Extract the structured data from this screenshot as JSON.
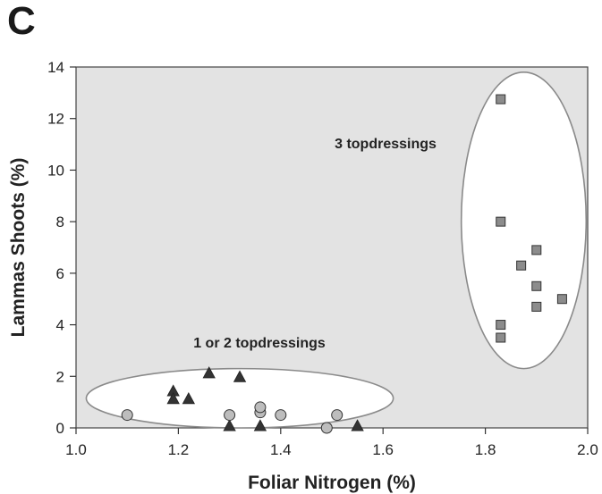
{
  "panel_label": "C",
  "chart_data": {
    "type": "scatter",
    "title": "",
    "xlabel": "Foliar Nitrogen (%)",
    "ylabel": "Lammas Shoots (%)",
    "xlim": [
      1.0,
      2.0
    ],
    "ylim": [
      0,
      14
    ],
    "xticks": [
      "1.0",
      "1.2",
      "1.4",
      "1.6",
      "1.8",
      "2.0"
    ],
    "yticks": [
      "0",
      "2",
      "4",
      "6",
      "8",
      "10",
      "12",
      "14"
    ],
    "grid": false,
    "plot_background": "#e3e3e3",
    "legend": "none",
    "series": [
      {
        "marker": "triangle",
        "color": "#333333",
        "points": [
          [
            1.19,
            1.4
          ],
          [
            1.19,
            1.1
          ],
          [
            1.22,
            1.1
          ],
          [
            1.26,
            2.1
          ],
          [
            1.32,
            1.95
          ],
          [
            1.3,
            0.05
          ],
          [
            1.36,
            0.05
          ],
          [
            1.55,
            0.05
          ]
        ]
      },
      {
        "marker": "circle",
        "color": "#bdbdbd",
        "points": [
          [
            1.1,
            0.5
          ],
          [
            1.3,
            0.5
          ],
          [
            1.36,
            0.6
          ],
          [
            1.36,
            0.8
          ],
          [
            1.4,
            0.5
          ],
          [
            1.49,
            0.0
          ],
          [
            1.51,
            0.5
          ]
        ]
      },
      {
        "marker": "square",
        "color": "#8c8c8c",
        "points": [
          [
            1.83,
            12.75
          ],
          [
            1.83,
            8.0
          ],
          [
            1.9,
            6.9
          ],
          [
            1.87,
            6.3
          ],
          [
            1.9,
            5.5
          ],
          [
            1.95,
            5.0
          ],
          [
            1.9,
            4.7
          ],
          [
            1.83,
            4.0
          ],
          [
            1.83,
            3.5
          ]
        ]
      }
    ],
    "groups": [
      {
        "label": "1 or 2 topdressings",
        "center": [
          1.32,
          1.15
        ],
        "radius": [
          0.3,
          1.15
        ]
      },
      {
        "label": "3 topdressings",
        "center": [
          1.875,
          8.05
        ],
        "radius": [
          0.122,
          5.75
        ]
      }
    ]
  }
}
